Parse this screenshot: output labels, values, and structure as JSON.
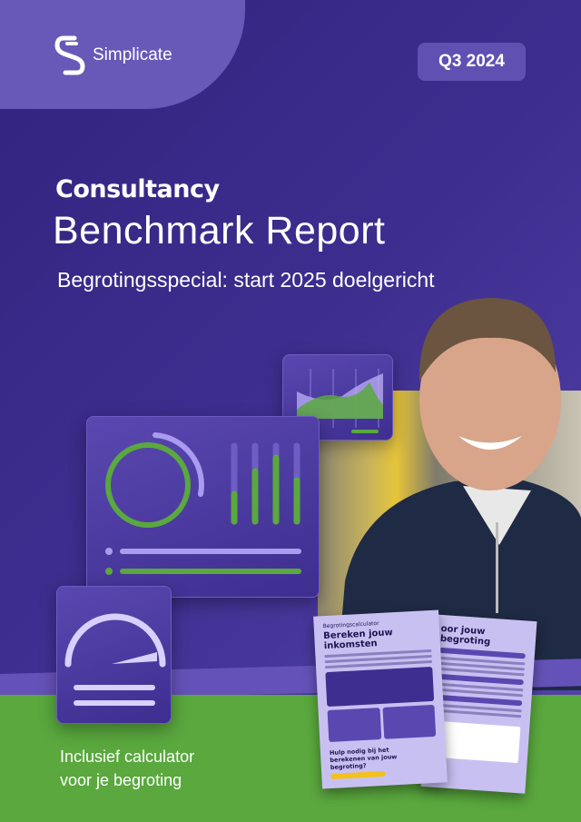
{
  "brand": {
    "name": "Simplicate",
    "logo_icon": "simplicate-s-logo-icon"
  },
  "badge": "Q3 2024",
  "title": {
    "line1": "Consultancy",
    "line2": "Benchmark Report"
  },
  "subtitle": "Begrotingsspecial: start 2025 doelgericht",
  "footer": {
    "line1": "Inclusief calculator",
    "line2": "voor je begroting"
  },
  "preview_pages": {
    "left": {
      "kicker": "Begrotingscalculator",
      "heading": "Bereken jouw inkomsten",
      "help": "Hulp nodig bij het berekenen van jouw begroting?"
    },
    "right": {
      "heading": "oor jouw begroting"
    }
  },
  "colors": {
    "background": "#3d2d8e",
    "accent_light": "#6858b8",
    "green": "#5aa83e",
    "lavender": "#a99cf0"
  }
}
